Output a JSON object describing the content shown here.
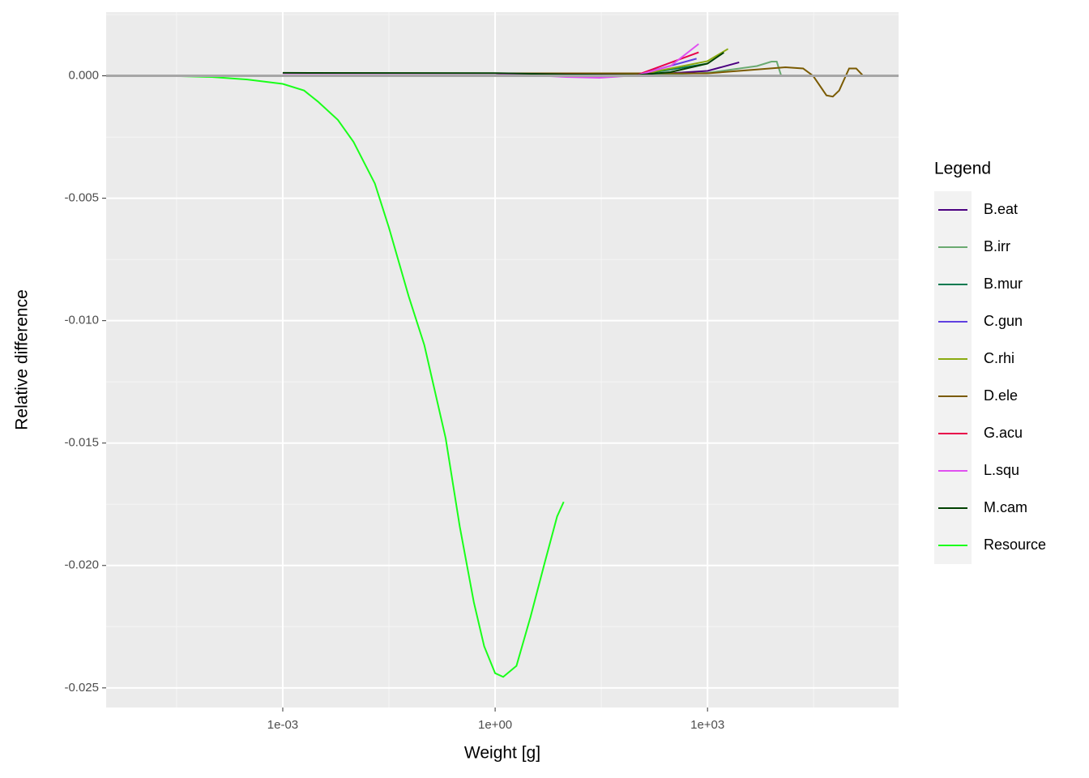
{
  "chart_data": {
    "type": "line",
    "x_label": "Weight [g]",
    "y_label": "Relative difference",
    "legend_title": "Legend",
    "legend_position": "right",
    "log_x": true,
    "grid": true,
    "hline": 0,
    "hline_color": "#a6a6a6",
    "xlim": [
      3.2e-06,
      500000
    ],
    "ylim": [
      -0.0258,
      0.0026
    ],
    "xticks": [
      {
        "value": 0.001,
        "label": "1e-03"
      },
      {
        "value": 1,
        "label": "1e+00"
      },
      {
        "value": 1000,
        "label": "1e+03"
      }
    ],
    "yticks": [
      {
        "value": 0,
        "label": "0.000"
      },
      {
        "value": -0.005,
        "label": "-0.005"
      },
      {
        "value": -0.01,
        "label": "-0.010"
      },
      {
        "value": -0.015,
        "label": "-0.015"
      },
      {
        "value": -0.02,
        "label": "-0.020"
      },
      {
        "value": -0.025,
        "label": "-0.025"
      }
    ],
    "series": [
      {
        "name": "B.eat",
        "color": "#4b0080",
        "x": [
          0.001,
          1,
          100,
          1000,
          2800
        ],
        "values": [
          0.0001,
          0.0001,
          2e-05,
          0.0002,
          0.00055
        ]
      },
      {
        "name": "B.irr",
        "color": "#6aaa70",
        "x": [
          0.001,
          1,
          100,
          1000,
          5000,
          8000,
          9500,
          11000
        ],
        "values": [
          0.0001,
          0.0001,
          2e-05,
          0.00012,
          0.0004,
          0.00058,
          0.00058,
          0
        ]
      },
      {
        "name": "B.mur",
        "color": "#007a50",
        "x": [
          0.001,
          1,
          100,
          1000
        ],
        "values": [
          0.0001,
          0.0001,
          3e-05,
          0.0005
        ]
      },
      {
        "name": "C.gun",
        "color": "#6040e0",
        "x": [
          0.001,
          1,
          100,
          700
        ],
        "values": [
          0.0001,
          0.0001,
          3e-05,
          0.0007
        ]
      },
      {
        "name": "C.rhi",
        "color": "#8aaa10",
        "x": [
          0.001,
          1,
          100,
          1000,
          1950
        ],
        "values": [
          0.0001,
          0.0001,
          3e-05,
          0.0006,
          0.0011
        ]
      },
      {
        "name": "D.ele",
        "color": "#7a5a00",
        "x": [
          0.001,
          1,
          1000,
          12600,
          22400,
          31000,
          47900,
          58900,
          72400,
          100000,
          126000,
          158000
        ],
        "values": [
          0.0001,
          0.0001,
          0.0001,
          0.00035,
          0.0003,
          0,
          -0.0008,
          -0.00085,
          -0.0006,
          0.0003,
          0.0003,
          0
        ]
      },
      {
        "name": "G.acu",
        "color": "#e8004a",
        "x": [
          0.001,
          1,
          100,
          750
        ],
        "values": [
          0.0001,
          0.0001,
          3e-05,
          0.00096
        ]
      },
      {
        "name": "L.squ",
        "color": "#e050f0",
        "x": [
          0.001,
          1,
          10,
          30,
          100,
          300,
          750
        ],
        "values": [
          0.0001,
          0.0001,
          -5e-05,
          -8e-05,
          2e-05,
          0.0004,
          0.0013
        ]
      },
      {
        "name": "M.cam",
        "color": "#004000",
        "x": [
          0.001,
          1,
          10,
          100,
          300,
          1000,
          1700
        ],
        "values": [
          0.00012,
          0.00011,
          6e-05,
          3e-05,
          0.00015,
          0.0005,
          0.00095
        ]
      },
      {
        "name": "Resource",
        "color": "#1aff1a",
        "x": [
          1e-05,
          3.16e-05,
          0.0001,
          0.000316,
          0.001,
          0.002,
          0.00316,
          0.006,
          0.01,
          0.02,
          0.0316,
          0.06,
          0.1,
          0.2,
          0.316,
          0.5,
          0.7,
          1,
          1.3,
          2,
          3.16,
          5,
          7.5,
          9.3
        ],
        "values": [
          0,
          -1e-05,
          -5e-05,
          -0.00015,
          -0.00033,
          -0.0006,
          -0.00106,
          -0.0018,
          -0.0027,
          -0.0044,
          -0.0062,
          -0.009,
          -0.011,
          -0.0148,
          -0.0184,
          -0.0215,
          -0.0233,
          -0.0244,
          -0.02455,
          -0.0241,
          -0.0221,
          -0.0199,
          -0.018,
          -0.0174
        ]
      }
    ]
  }
}
